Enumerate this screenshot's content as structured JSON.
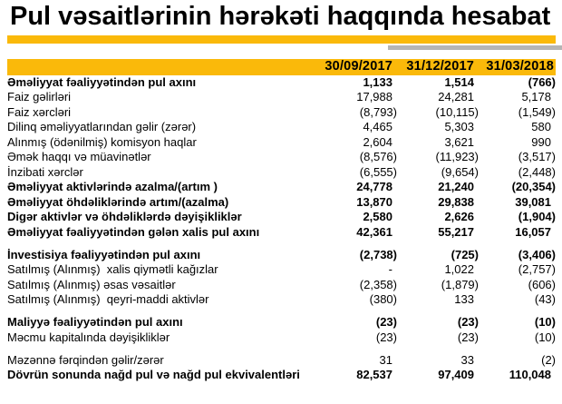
{
  "title": "Pul vəsaitlərinin hərəkəti haqqında hesabat",
  "colors": {
    "accent_yellow": "#FAB90A",
    "accent_gray": "#B5B5B5"
  },
  "columns": [
    "30/09/2017",
    "31/12/2017",
    "31/03/2018"
  ],
  "rows": [
    {
      "label": "Əməliyyat fəaliyyətindən pul axını",
      "values": [
        "1,133",
        "1,514",
        "(766)"
      ],
      "bold": true
    },
    {
      "label": "Faiz gəlirləri",
      "values": [
        "17,988",
        "24,281",
        "5,178"
      ],
      "bold": false
    },
    {
      "label": "Faiz xərcləri",
      "values": [
        "(8,793)",
        "(10,115)",
        "(1,549)"
      ],
      "bold": false
    },
    {
      "label": "Dilinq əməliyyatlarından gəlir (zərər)",
      "values": [
        "4,465",
        "5,303",
        "580"
      ],
      "bold": false
    },
    {
      "label": "Alınmış (ödənilmiş) komisyon haqlar",
      "values": [
        "2,604",
        "3,621",
        "990"
      ],
      "bold": false
    },
    {
      "label": "Əmək haqqı və müavinətlər",
      "values": [
        "(8,576)",
        "(11,923)",
        "(3,517)"
      ],
      "bold": false
    },
    {
      "label": "İnzibati xərclər",
      "values": [
        "(6,555)",
        "(9,654)",
        "(2,448)"
      ],
      "bold": false
    },
    {
      "label": "Əməliyyat aktivlərində azalma/(artım )",
      "values": [
        "24,778",
        "21,240",
        "(20,354)"
      ],
      "bold": true
    },
    {
      "label": "Əməliyyat öhdəliklərində artım/(azalma)",
      "values": [
        "13,870",
        "29,838",
        "39,081"
      ],
      "bold": true
    },
    {
      "label": "Digər aktivlər və öhdəliklərdə dəyişikliklər",
      "values": [
        "2,580",
        "2,626",
        "(1,904)"
      ],
      "bold": true
    },
    {
      "label": "Əməliyyat fəaliyyətindən gələn xalis pul axını",
      "values": [
        "42,361",
        "55,217",
        "16,057"
      ],
      "bold": true
    },
    {
      "gap": true
    },
    {
      "label": "İnvestisiya fəaliyyətindən pul axını",
      "values": [
        "(2,738)",
        "(725)",
        "(3,406)"
      ],
      "bold": true
    },
    {
      "label": "Satılmış (Alınmış)  xalis qiymətli kağızlar",
      "values": [
        "-",
        "1,022",
        "(2,757)"
      ],
      "bold": false
    },
    {
      "label": "Satılmış (Alınmış) əsas vəsaitlər",
      "values": [
        "(2,358)",
        "(1,879)",
        "(606)"
      ],
      "bold": false
    },
    {
      "label": "Satılmış (Alınmış)  qeyri-maddi aktivlər",
      "values": [
        "(380)",
        "133",
        "(43)"
      ],
      "bold": false
    },
    {
      "gap": true
    },
    {
      "label": "Maliyyə fəaliyyətindən pul axını",
      "values": [
        "(23)",
        "(23)",
        "(10)"
      ],
      "bold": true
    },
    {
      "label": "Məcmu kapitalında dəyişikliklər",
      "values": [
        "(23)",
        "(23)",
        "(10)"
      ],
      "bold": false
    },
    {
      "gap": true
    },
    {
      "label": "Məzənnə fərqindən gəlir/zərər",
      "values": [
        "31",
        "33",
        "(2)"
      ],
      "bold": false
    },
    {
      "label": "Dövrün sonunda nağd pul və nağd pul ekvivalentləri",
      "values": [
        "82,537",
        "97,409",
        "110,048"
      ],
      "bold": true
    }
  ]
}
